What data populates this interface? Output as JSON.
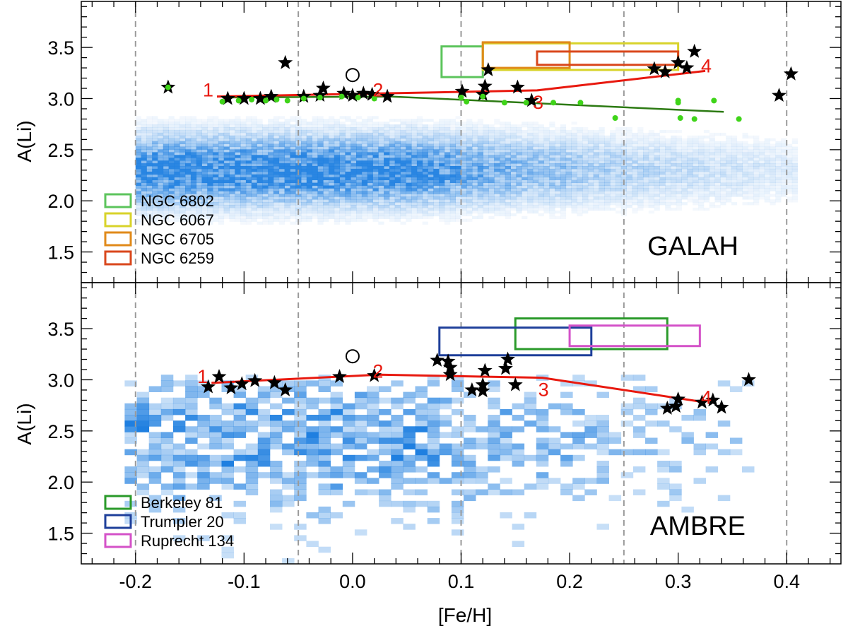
{
  "chart_data": [
    {
      "type": "scatter",
      "panel": "top",
      "survey_label": "GALAH",
      "xlabel": "",
      "ylabel": "A(Li)",
      "xlim": [
        -0.25,
        0.45
      ],
      "ylim": [
        1.2,
        3.95
      ],
      "yticks": [
        1.5,
        2.0,
        2.5,
        3.0,
        3.5
      ],
      "ytick_labels": [
        "1.5",
        "2.0",
        "2.5",
        "3.0",
        "3.5"
      ],
      "vlines": [
        -0.2,
        -0.05,
        0.1,
        0.25,
        0.4
      ],
      "density": {
        "style": "fine",
        "color": "#1f7fe0",
        "xrange": [
          -0.2,
          0.41
        ],
        "yrange": [
          1.2,
          3.1
        ],
        "peak": 2.3,
        "spread": 0.3,
        "decay": 0.18
      },
      "boxes": [
        {
          "name": "NGC 6802",
          "color": "#5cc45c",
          "x": [
            0.082,
            0.12
          ],
          "y": [
            3.21,
            3.51
          ]
        },
        {
          "name": "NGC 6067",
          "color": "#d8d32a",
          "x": [
            0.12,
            0.3
          ],
          "y": [
            3.28,
            3.54
          ]
        },
        {
          "name": "NGC 6705",
          "color": "#e08a1a",
          "x": [
            0.12,
            0.2
          ],
          "y": [
            3.3,
            3.55
          ]
        },
        {
          "name": "NGC 6259",
          "color": "#d9471c",
          "x": [
            0.17,
            0.3
          ],
          "y": [
            3.33,
            3.46
          ]
        }
      ],
      "legend": [
        "NGC 6802",
        "NGC 6067",
        "NGC 6705",
        "NGC 6259"
      ],
      "legend_colors": [
        "#5cc45c",
        "#d8d32a",
        "#e08a1a",
        "#d9471c"
      ],
      "sun": {
        "x": 0.0,
        "y": 3.23
      },
      "stars": [
        {
          "x": -0.17,
          "y": 3.11
        },
        {
          "x": -0.062,
          "y": 3.35
        },
        {
          "x": -0.115,
          "y": 3.0
        },
        {
          "x": -0.1,
          "y": 3.0
        },
        {
          "x": -0.085,
          "y": 3.0
        },
        {
          "x": -0.075,
          "y": 3.02
        },
        {
          "x": -0.045,
          "y": 3.02
        },
        {
          "x": -0.03,
          "y": 3.03
        },
        {
          "x": -0.027,
          "y": 3.1
        },
        {
          "x": -0.008,
          "y": 3.05
        },
        {
          "x": 0.0,
          "y": 3.03
        },
        {
          "x": 0.01,
          "y": 3.05
        },
        {
          "x": 0.018,
          "y": 3.04
        },
        {
          "x": 0.032,
          "y": 3.02
        },
        {
          "x": 0.101,
          "y": 3.07
        },
        {
          "x": 0.12,
          "y": 3.04
        },
        {
          "x": 0.122,
          "y": 3.12
        },
        {
          "x": 0.152,
          "y": 3.11
        },
        {
          "x": 0.165,
          "y": 2.98
        },
        {
          "x": 0.125,
          "y": 3.28
        },
        {
          "x": 0.278,
          "y": 3.29
        },
        {
          "x": 0.288,
          "y": 3.26
        },
        {
          "x": 0.3,
          "y": 3.35
        },
        {
          "x": 0.308,
          "y": 3.3
        },
        {
          "x": 0.315,
          "y": 3.46
        },
        {
          "x": 0.393,
          "y": 3.03
        },
        {
          "x": 0.404,
          "y": 3.24
        }
      ],
      "green_points": [
        {
          "x": -0.17,
          "y": 3.11
        },
        {
          "x": -0.12,
          "y": 2.97
        },
        {
          "x": -0.105,
          "y": 2.98
        },
        {
          "x": -0.093,
          "y": 2.99
        },
        {
          "x": -0.08,
          "y": 2.98
        },
        {
          "x": -0.07,
          "y": 2.99
        },
        {
          "x": -0.06,
          "y": 2.98
        },
        {
          "x": -0.045,
          "y": 3.0
        },
        {
          "x": -0.03,
          "y": 3.01
        },
        {
          "x": -0.01,
          "y": 3.02
        },
        {
          "x": 0.005,
          "y": 3.01
        },
        {
          "x": 0.02,
          "y": 3.0
        },
        {
          "x": 0.1,
          "y": 3.01
        },
        {
          "x": 0.105,
          "y": 2.97
        },
        {
          "x": 0.12,
          "y": 3.02
        },
        {
          "x": 0.14,
          "y": 2.96
        },
        {
          "x": 0.16,
          "y": 2.96
        },
        {
          "x": 0.185,
          "y": 2.96
        },
        {
          "x": 0.21,
          "y": 2.96
        },
        {
          "x": 0.242,
          "y": 2.81
        },
        {
          "x": 0.3,
          "y": 2.96
        },
        {
          "x": 0.302,
          "y": 2.81
        },
        {
          "x": 0.315,
          "y": 2.8
        },
        {
          "x": 0.3,
          "y": 2.98
        },
        {
          "x": 0.333,
          "y": 2.98
        },
        {
          "x": 0.356,
          "y": 2.8
        }
      ],
      "fit_line": {
        "color": "#2c7a12",
        "points": [
          [
            -0.12,
            3.01
          ],
          [
            0.035,
            3.02
          ],
          [
            0.342,
            2.87
          ]
        ]
      },
      "trend": {
        "color": "#e8190f",
        "points": [
          [
            -0.125,
            3.02
          ],
          [
            0.025,
            3.05
          ],
          [
            0.17,
            3.08
          ],
          [
            0.325,
            3.27
          ]
        ],
        "labels": [
          "1",
          "2",
          "3",
          "4"
        ]
      }
    },
    {
      "type": "scatter",
      "panel": "bottom",
      "survey_label": "AMBRE",
      "xlabel": "[Fe/H]",
      "ylabel": "A(Li)",
      "xlim": [
        -0.25,
        0.45
      ],
      "ylim": [
        1.2,
        3.95
      ],
      "xticks": [
        -0.2,
        -0.1,
        0.0,
        0.1,
        0.2,
        0.3,
        0.4
      ],
      "xtick_labels": [
        "-0.2",
        "-0.1",
        "0.0",
        "0.1",
        "0.2",
        "0.3",
        "0.4"
      ],
      "yticks": [
        1.5,
        2.0,
        2.5,
        3.0,
        3.5
      ],
      "ytick_labels": [
        "1.5",
        "2.0",
        "2.5",
        "3.0",
        "3.5"
      ],
      "vlines": [
        -0.2,
        -0.05,
        0.1,
        0.25,
        0.4
      ],
      "density": {
        "style": "coarse",
        "color": "#1f7fe0",
        "xrange": [
          -0.21,
          0.37
        ],
        "yrange": [
          1.2,
          3.05
        ],
        "peak": 2.4,
        "spread": 0.6,
        "decay": 0.25
      },
      "boxes": [
        {
          "name": "Berkeley 81",
          "color": "#2a9a2a",
          "x": [
            0.15,
            0.29
          ],
          "y": [
            3.3,
            3.6
          ]
        },
        {
          "name": "Trumpler 20",
          "color": "#1e3f9a",
          "x": [
            0.08,
            0.22
          ],
          "y": [
            3.24,
            3.51
          ]
        },
        {
          "name": "Ruprecht 134",
          "color": "#d452c8",
          "x": [
            0.2,
            0.32
          ],
          "y": [
            3.33,
            3.53
          ]
        }
      ],
      "legend": [
        "Berkeley 81",
        "Trumpler 20",
        "Ruprecht 134"
      ],
      "legend_colors": [
        "#2a9a2a",
        "#1e3f9a",
        "#d452c8"
      ],
      "sun": {
        "x": 0.0,
        "y": 3.23
      },
      "stars": [
        {
          "x": -0.133,
          "y": 2.93
        },
        {
          "x": -0.123,
          "y": 3.03
        },
        {
          "x": -0.112,
          "y": 2.92
        },
        {
          "x": -0.102,
          "y": 2.96
        },
        {
          "x": -0.09,
          "y": 2.99
        },
        {
          "x": -0.072,
          "y": 2.97
        },
        {
          "x": -0.062,
          "y": 2.9
        },
        {
          "x": -0.012,
          "y": 3.03
        },
        {
          "x": 0.02,
          "y": 3.04
        },
        {
          "x": 0.078,
          "y": 3.19
        },
        {
          "x": 0.088,
          "y": 3.18
        },
        {
          "x": 0.09,
          "y": 3.12
        },
        {
          "x": 0.09,
          "y": 3.05
        },
        {
          "x": 0.11,
          "y": 2.9
        },
        {
          "x": 0.12,
          "y": 2.89
        },
        {
          "x": 0.12,
          "y": 2.95
        },
        {
          "x": 0.122,
          "y": 3.09
        },
        {
          "x": 0.141,
          "y": 3.11
        },
        {
          "x": 0.143,
          "y": 3.2
        },
        {
          "x": 0.15,
          "y": 2.95
        },
        {
          "x": 0.29,
          "y": 2.72
        },
        {
          "x": 0.298,
          "y": 2.74
        },
        {
          "x": 0.3,
          "y": 2.81
        },
        {
          "x": 0.322,
          "y": 2.78
        },
        {
          "x": 0.332,
          "y": 2.8
        },
        {
          "x": 0.34,
          "y": 2.73
        },
        {
          "x": 0.365,
          "y": 3.0
        }
      ],
      "trend": {
        "color": "#e8190f",
        "points": [
          [
            -0.13,
            2.97
          ],
          [
            0.025,
            3.05
          ],
          [
            0.175,
            3.02
          ],
          [
            0.325,
            2.78
          ]
        ],
        "labels": [
          "1",
          "2",
          "3",
          "4"
        ]
      }
    }
  ]
}
